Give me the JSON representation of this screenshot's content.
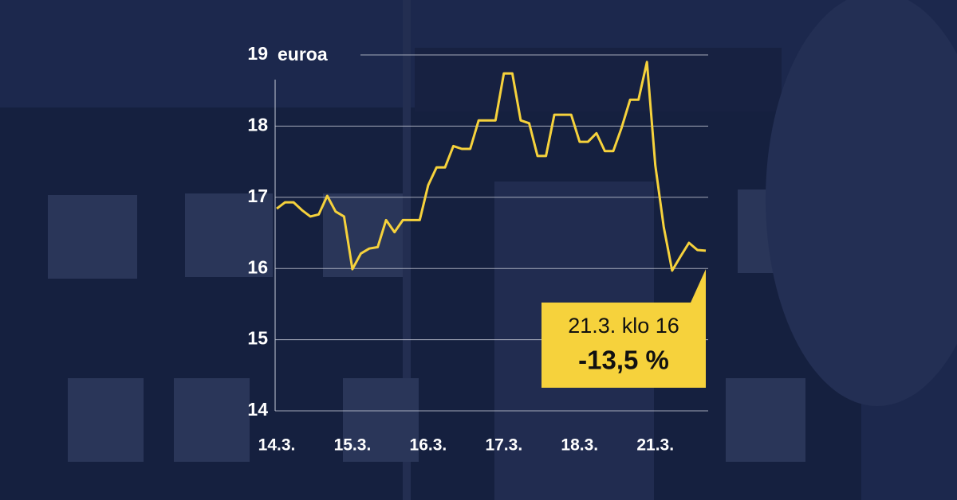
{
  "chart_data": {
    "type": "line",
    "y_label": "euroa",
    "annotation": {
      "subtitle": "21.3. klo 16",
      "change": "-13,5 %"
    },
    "series": [
      {
        "color": "#f6d23c",
        "x": [
          0,
          1,
          2,
          3,
          4,
          5,
          6,
          7,
          8,
          9,
          10,
          11,
          12,
          13,
          14,
          15,
          16,
          17,
          18,
          19,
          20,
          21,
          22,
          23,
          24,
          25,
          26,
          27,
          28,
          29,
          30,
          31,
          32,
          33,
          34,
          35,
          36,
          37,
          38,
          39,
          40,
          41,
          42,
          43,
          44,
          45,
          46,
          47,
          48,
          49,
          50,
          51
        ],
        "values": [
          16.84,
          16.93,
          16.93,
          16.82,
          16.73,
          16.76,
          17.02,
          16.8,
          16.73,
          15.99,
          16.21,
          16.28,
          16.3,
          16.68,
          16.51,
          16.68,
          16.68,
          16.68,
          17.17,
          17.42,
          17.42,
          17.72,
          17.68,
          17.68,
          18.08,
          18.08,
          18.08,
          18.74,
          18.74,
          18.08,
          18.04,
          17.58,
          17.58,
          18.16,
          18.16,
          18.16,
          17.78,
          17.78,
          17.9,
          17.65,
          17.65,
          17.98,
          18.37,
          18.37,
          18.9,
          17.45,
          16.58,
          15.97,
          16.17,
          16.36,
          16.26,
          16.25
        ]
      }
    ],
    "xlim": [
      0,
      51
    ],
    "xticks": [
      {
        "value": 0,
        "label": "14.3."
      },
      {
        "value": 9,
        "label": "15.3."
      },
      {
        "value": 18,
        "label": "16.3."
      },
      {
        "value": 27,
        "label": "17.3."
      },
      {
        "value": 36,
        "label": "18.3."
      },
      {
        "value": 45,
        "label": "21.3."
      }
    ],
    "ylim": [
      14,
      19
    ],
    "yticks": [
      14,
      15,
      16,
      17,
      18,
      19
    ],
    "grid": true
  }
}
